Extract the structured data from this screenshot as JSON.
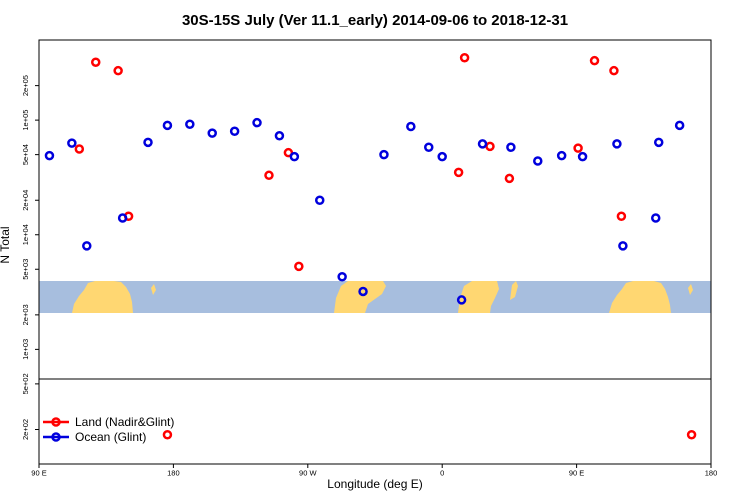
{
  "chart_data": {
    "type": "scatter",
    "title": "30S-15S July (Ver 11.1_early)   2014-09-06 to 2018-12-31",
    "xlabel": "Longitude (deg E)",
    "ylabel": "N Total",
    "y_scale": "log",
    "x_unwrapped_range": [
      90,
      450
    ],
    "x_ticks": [
      {
        "value": 90,
        "label": "90 E"
      },
      {
        "value": 180,
        "label": "180"
      },
      {
        "value": 270,
        "label": "90 W"
      },
      {
        "value": 360,
        "label": "0"
      },
      {
        "value": 450,
        "label": "90 E"
      },
      {
        "value": 540,
        "label": "180"
      }
    ],
    "x_range_drawn": [
      90,
      540
    ],
    "y_ticks": [
      {
        "value": 200,
        "label": "2e+02"
      },
      {
        "value": 500,
        "label": "5e+02"
      },
      {
        "value": 1000,
        "label": "1e+03"
      },
      {
        "value": 2000,
        "label": "2e+03"
      },
      {
        "value": 5000,
        "label": "5e+03"
      },
      {
        "value": 10000,
        "label": "1e+04"
      },
      {
        "value": 20000,
        "label": "2e+04"
      },
      {
        "value": 50000,
        "label": "5e+04"
      },
      {
        "value": 100000,
        "label": "1e+05"
      },
      {
        "value": 200000,
        "label": "2e+05"
      }
    ],
    "ylim": [
      100,
      500000
    ],
    "colors": {
      "land": "#ff0000",
      "ocean": "#0000dd",
      "land_mask": "#ffd772",
      "sea_mask": "#a7bede"
    },
    "legend": {
      "placement": "bottom-left",
      "entries": [
        {
          "label": "Land (Nadir&Glint)",
          "color": "#ff0000"
        },
        {
          "label": "Ocean (Glint)",
          "color": "#0000dd"
        }
      ]
    },
    "series": [
      {
        "name": "Land (Nadir&Glint)",
        "color": "#ff0000",
        "x": [
          117,
          128,
          143,
          150,
          176,
          244,
          257,
          264,
          371,
          375,
          392,
          405,
          451,
          462,
          475,
          480,
          527
        ],
        "y": [
          56000,
          320000,
          270000,
          14500,
          180,
          33000,
          52000,
          5300,
          35000,
          350000,
          59000,
          31000,
          57000,
          330000,
          270000,
          14500,
          180
        ]
      },
      {
        "name": "Ocean (Glint)",
        "color": "#0000dd",
        "x": [
          97,
          112,
          122,
          146,
          163,
          176,
          191,
          206,
          221,
          236,
          251,
          261,
          278,
          293,
          307,
          321,
          339,
          351,
          360,
          373,
          387,
          406,
          424,
          440,
          454,
          477,
          481,
          503,
          505,
          519
        ],
        "y": [
          49000,
          63000,
          8000,
          14000,
          64000,
          90000,
          92000,
          77000,
          80000,
          95000,
          73000,
          48000,
          20000,
          4300,
          3200,
          50000,
          88000,
          58000,
          48000,
          2700,
          62000,
          58000,
          44000,
          49000,
          48000,
          62000,
          8000,
          14000,
          64000,
          90000
        ]
      }
    ]
  }
}
